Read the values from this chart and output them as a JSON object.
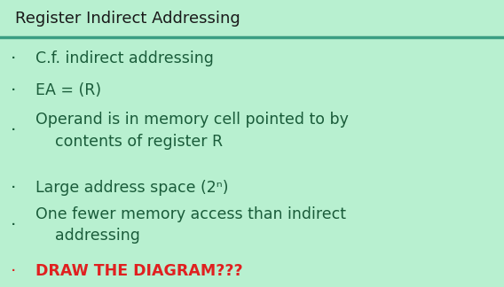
{
  "title": "Register Indirect Addressing",
  "bg_color": "#b8f0d0",
  "header_line_color": "#3a9e82",
  "title_color": "#1a1a1a",
  "bullet_color": "#1a5c3a",
  "red_color": "#e02020",
  "bullet_char": "·",
  "bullets": [
    {
      "text": "C.f. indirect addressing",
      "is_red": false
    },
    {
      "text": "EA = (R)",
      "is_red": false
    },
    {
      "text": "Operand is in memory cell pointed to by\n    contents of register R",
      "is_red": false
    },
    {
      "text": "Large address space (2ⁿ)",
      "is_red": false
    },
    {
      "text": "One fewer memory access than indirect\n    addressing",
      "is_red": false
    },
    {
      "text": "DRAW THE DIAGRAM???",
      "is_red": true
    }
  ],
  "title_fontsize": 13,
  "bullet_fontsize": 12.5,
  "figsize": [
    5.68,
    3.24
  ],
  "dpi": 100
}
